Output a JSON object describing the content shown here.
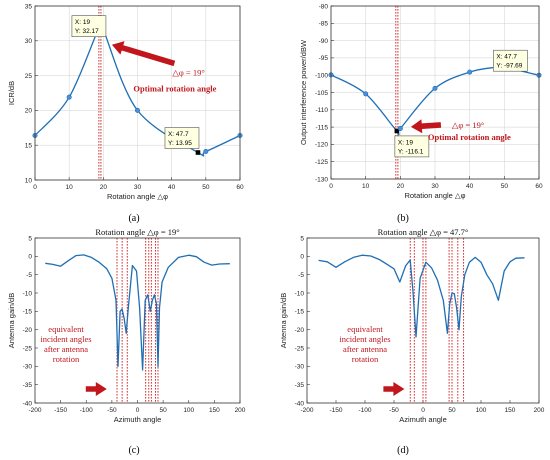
{
  "colors": {
    "line": "#1f6fb5",
    "marker_face": "#4a90d9",
    "highlight": "#000000",
    "guide": "#d11a1a",
    "annotation": "#c0161c",
    "grid": "#d0d0d0",
    "axis": "#333333",
    "datatip_bg": "#ffffe1"
  },
  "chart_data": [
    {
      "type": "line",
      "panel": "(a)",
      "xlabel": "Rotation angle △φ",
      "ylabel": "ICR/dB",
      "xlim": [
        0,
        60
      ],
      "ylim": [
        10,
        35
      ],
      "xticks": [
        0,
        10,
        20,
        30,
        40,
        50,
        60
      ],
      "yticks": [
        10,
        15,
        20,
        25,
        30,
        35
      ],
      "grid": true,
      "x": [
        0,
        10,
        19,
        20,
        30,
        47.7,
        50,
        60
      ],
      "y": [
        16.4,
        21.9,
        32.17,
        31.6,
        20.0,
        13.95,
        14.1,
        16.4
      ],
      "highlight_x": [
        19,
        47.7
      ],
      "guide_x": [
        18.7,
        19.3
      ],
      "datatips": [
        {
          "x_text": "X: 19",
          "y_text": "Y: 32.17"
        },
        {
          "x_text": "X: 47.7",
          "y_text": "Y: 13.95"
        }
      ],
      "annotations": {
        "delta": "△φ = 19°",
        "label": "Optimal rotation angle"
      }
    },
    {
      "type": "line",
      "panel": "(b)",
      "xlabel": "Rotation angle △φ",
      "ylabel": "Output interference power/dBW",
      "xlim": [
        0,
        60
      ],
      "ylim": [
        -130,
        -80
      ],
      "xticks": [
        0,
        10,
        20,
        30,
        40,
        50,
        60
      ],
      "yticks": [
        -80,
        -85,
        -90,
        -95,
        -100,
        -105,
        -110,
        -115,
        -120,
        -125,
        -130
      ],
      "grid": true,
      "x": [
        0,
        10,
        19,
        20,
        30,
        40,
        47.7,
        50,
        60
      ],
      "y": [
        -99.9,
        -105.4,
        -116.1,
        -115.4,
        -103.8,
        -99.1,
        -97.69,
        -97.7,
        -100.0
      ],
      "highlight_x": [
        19,
        47.7
      ],
      "guide_x": [
        18.7,
        19.3
      ],
      "datatips": [
        {
          "x_text": "X: 47.7",
          "y_text": "Y: -97.69"
        },
        {
          "x_text": "X: 19",
          "y_text": "Y: -116.1"
        }
      ],
      "annotations": {
        "delta": "△φ = 19°",
        "label": "Optimal rotation angle"
      }
    },
    {
      "type": "line",
      "panel": "(c)",
      "title": "Rotation angle △φ = 19°",
      "xlabel": "Azimuth angle",
      "ylabel": "Antenna gain/dB",
      "xlim": [
        -200,
        200
      ],
      "ylim": [
        -40,
        5
      ],
      "xticks": [
        -200,
        -150,
        -100,
        -50,
        0,
        50,
        100,
        150,
        200
      ],
      "yticks": [
        5,
        0,
        -5,
        -10,
        -15,
        -20,
        -25,
        -30,
        -35,
        -40
      ],
      "grid": false,
      "x": [
        -180,
        -165,
        -150,
        -135,
        -120,
        -105,
        -90,
        -75,
        -60,
        -50,
        -42,
        -38,
        -34,
        -30,
        -26,
        -22,
        -18,
        -10,
        -2,
        4,
        10,
        15,
        20,
        25,
        29,
        33,
        37,
        40,
        43,
        48,
        60,
        80,
        100,
        115,
        130,
        145,
        160,
        180
      ],
      "y": [
        -1.9,
        -2.2,
        -2.7,
        -1.2,
        0.2,
        0.4,
        -0.3,
        -1.6,
        -3.4,
        -6,
        -12,
        -30,
        -15,
        -14.4,
        -17,
        -21,
        -14,
        -2.5,
        -4,
        -14,
        -31,
        -12,
        -10.5,
        -15,
        -12,
        -10.5,
        -13,
        -30,
        -14,
        -7,
        -3,
        -0.3,
        0.3,
        -0.1,
        -1.6,
        -2.4,
        -2.1,
        -2.0
      ],
      "guide_x": [
        -40,
        -30,
        -20,
        16,
        22,
        27,
        35,
        40
      ],
      "annotations": {
        "text": [
          "equivalent",
          "incident angles",
          "after antenna",
          "rotation"
        ]
      }
    },
    {
      "type": "line",
      "panel": "(d)",
      "title": "Rotation angle △φ = 47.7°",
      "xlabel": "Azimuth angle",
      "ylabel": "Antenna gain/dB",
      "xlim": [
        -200,
        200
      ],
      "ylim": [
        -40,
        5
      ],
      "xticks": [
        -200,
        -150,
        -100,
        -50,
        0,
        50,
        100,
        150,
        200
      ],
      "yticks": [
        5,
        0,
        -5,
        -10,
        -15,
        -20,
        -25,
        -30,
        -35,
        -40
      ],
      "grid": false,
      "x": [
        -180,
        -165,
        -150,
        -135,
        -120,
        -105,
        -90,
        -75,
        -60,
        -50,
        -40,
        -30,
        -22,
        -17,
        -12,
        -5,
        5,
        15,
        25,
        35,
        42,
        46,
        50,
        54,
        58,
        62,
        66,
        72,
        80,
        90,
        100,
        110,
        120,
        130,
        140,
        150,
        160,
        175
      ],
      "y": [
        -1.1,
        -1.5,
        -3.0,
        -1.5,
        -0.3,
        0.3,
        0.1,
        -0.9,
        -2.4,
        -3.4,
        -7,
        -2.6,
        -1,
        -10,
        -22,
        -6,
        -1.6,
        -3.2,
        -6.5,
        -12,
        -21,
        -13,
        -10,
        -10.2,
        -14,
        -20,
        -11,
        -5,
        -1.6,
        -0.3,
        -1.6,
        -5,
        -7.5,
        -12,
        -4,
        -1.5,
        -0.5,
        -0.4
      ],
      "guide_x": [
        -22,
        -15,
        0,
        5,
        45,
        50,
        60,
        70
      ],
      "annotations": {
        "text": [
          "equivalent",
          "incident angles",
          "after antenna",
          "rotation"
        ]
      }
    }
  ],
  "captions": [
    "(a)",
    "(b)",
    "(c)",
    "(d)"
  ]
}
